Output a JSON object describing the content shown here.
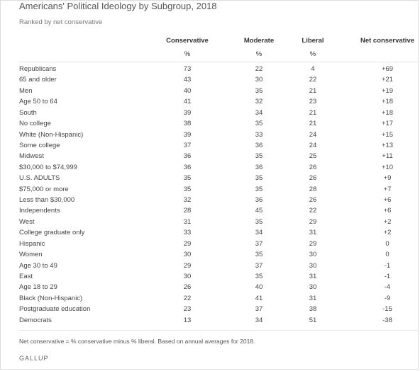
{
  "title": "Americans' Political Ideology by Subgroup, 2018",
  "subtitle": "Ranked by net conservative",
  "chart_data": {
    "type": "table",
    "columns": [
      "Conservative",
      "Moderate",
      "Liberal",
      "Net conservative"
    ],
    "units": [
      "%",
      "%",
      "%",
      ""
    ],
    "rows": [
      {
        "label": "Republicans",
        "values": [
          "73",
          "22",
          "4",
          "+69"
        ]
      },
      {
        "label": "65 and older",
        "values": [
          "43",
          "30",
          "22",
          "+21"
        ]
      },
      {
        "label": "Men",
        "values": [
          "40",
          "35",
          "21",
          "+19"
        ]
      },
      {
        "label": "Age 50 to 64",
        "values": [
          "41",
          "32",
          "23",
          "+18"
        ]
      },
      {
        "label": "South",
        "values": [
          "39",
          "34",
          "21",
          "+18"
        ]
      },
      {
        "label": "No college",
        "values": [
          "38",
          "35",
          "21",
          "+17"
        ]
      },
      {
        "label": "White (Non-Hispanic)",
        "values": [
          "39",
          "33",
          "24",
          "+15"
        ]
      },
      {
        "label": "Some college",
        "values": [
          "37",
          "36",
          "24",
          "+13"
        ]
      },
      {
        "label": "Midwest",
        "values": [
          "36",
          "35",
          "25",
          "+11"
        ]
      },
      {
        "label": "$30,000 to $74,999",
        "values": [
          "36",
          "36",
          "26",
          "+10"
        ]
      },
      {
        "label": "U.S. ADULTS",
        "values": [
          "35",
          "35",
          "26",
          "+9"
        ]
      },
      {
        "label": "$75,000 or more",
        "values": [
          "35",
          "35",
          "28",
          "+7"
        ]
      },
      {
        "label": "Less than $30,000",
        "values": [
          "32",
          "36",
          "26",
          "+6"
        ]
      },
      {
        "label": "Independents",
        "values": [
          "28",
          "45",
          "22",
          "+6"
        ]
      },
      {
        "label": "West",
        "values": [
          "31",
          "35",
          "29",
          "+2"
        ]
      },
      {
        "label": "College graduate only",
        "values": [
          "33",
          "34",
          "31",
          "+2"
        ]
      },
      {
        "label": "Hispanic",
        "values": [
          "29",
          "37",
          "29",
          "0"
        ]
      },
      {
        "label": "Women",
        "values": [
          "30",
          "35",
          "30",
          "0"
        ]
      },
      {
        "label": "Age 30 to 49",
        "values": [
          "29",
          "37",
          "30",
          "-1"
        ]
      },
      {
        "label": "East",
        "values": [
          "30",
          "35",
          "31",
          "-1"
        ]
      },
      {
        "label": "Age 18 to 29",
        "values": [
          "26",
          "40",
          "30",
          "-4"
        ]
      },
      {
        "label": "Black (Non-Hispanic)",
        "values": [
          "22",
          "41",
          "31",
          "-9"
        ]
      },
      {
        "label": "Postgraduate education",
        "values": [
          "23",
          "37",
          "38",
          "-15"
        ]
      },
      {
        "label": "Democrats",
        "values": [
          "13",
          "34",
          "51",
          "-38"
        ]
      }
    ]
  },
  "footnote": "Net conservative = % conservative minus % liberal. Based on annual averages for 2018.",
  "source": "GALLUP"
}
